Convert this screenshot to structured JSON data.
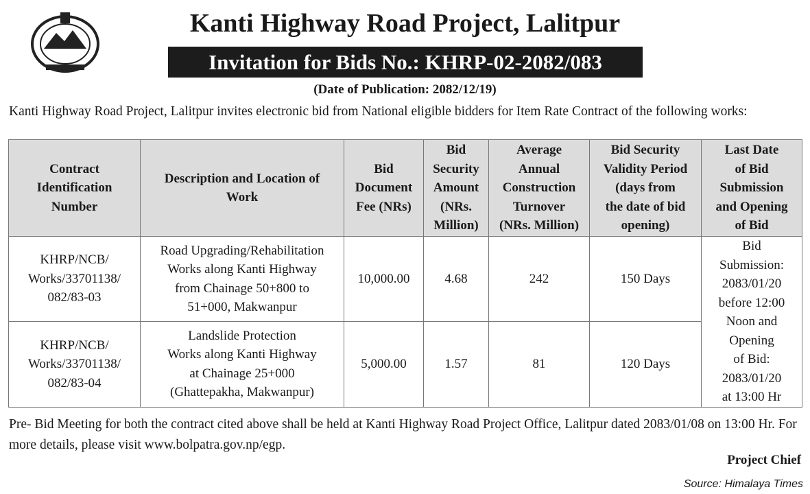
{
  "header": {
    "title": "Kanti Highway Road Project, Lalitpur",
    "subtitle": "Invitation for Bids No.: KHRP-02-2082/083",
    "publication_date": "(Date of Publication: 2082/12/19)"
  },
  "intro": "Kanti Highway Road Project, Lalitpur invites electronic bid from National eligible bidders for Item Rate Contract of the following works:",
  "table": {
    "columns": [
      "Contract\nIdentification\nNumber",
      "Description and Location of\nWork",
      "Bid\nDocument\nFee (NRs)",
      "Bid\nSecurity\nAmount\n(NRs.\nMillion)",
      "Average\nAnnual\nConstruction\nTurnover\n(NRs. Million)",
      "Bid Security\nValidity Period\n(days from\nthe date of bid\nopening)",
      "Last Date\nof Bid\nSubmission\nand Opening\nof Bid"
    ],
    "rows": [
      [
        "KHRP/NCB/\nWorks/33701138/\n082/83-03",
        "Road Upgrading/Rehabilitation\nWorks along Kanti Highway\nfrom Chainage 50+800 to\n51+000, Makwanpur",
        "10,000.00",
        "4.68",
        "242",
        "150 Days",
        "Bid\nSubmission:\n2083/01/20\nbefore 12:00\nNoon and\nOpening\nof Bid:\n2083/01/20\nat 13:00 Hr"
      ],
      [
        "KHRP/NCB/\nWorks/33701138/\n082/83-04",
        "Landslide Protection\nWorks along Kanti Highway\nat Chainage 25+000\n(Ghattepakha, Makwanpur)",
        "5,000.00",
        "1.57",
        "81",
        "120 Days"
      ]
    ]
  },
  "footer": {
    "note": "Pre- Bid Meeting for both the contract cited above shall be held at Kanti Highway Road Project Office, Lalitpur dated 2083/01/08 on 13:00 Hr. For more details, please visit www.bolpatra.gov.np/egp.",
    "signature": "Project Chief",
    "source": "Source: Himalaya Times"
  }
}
